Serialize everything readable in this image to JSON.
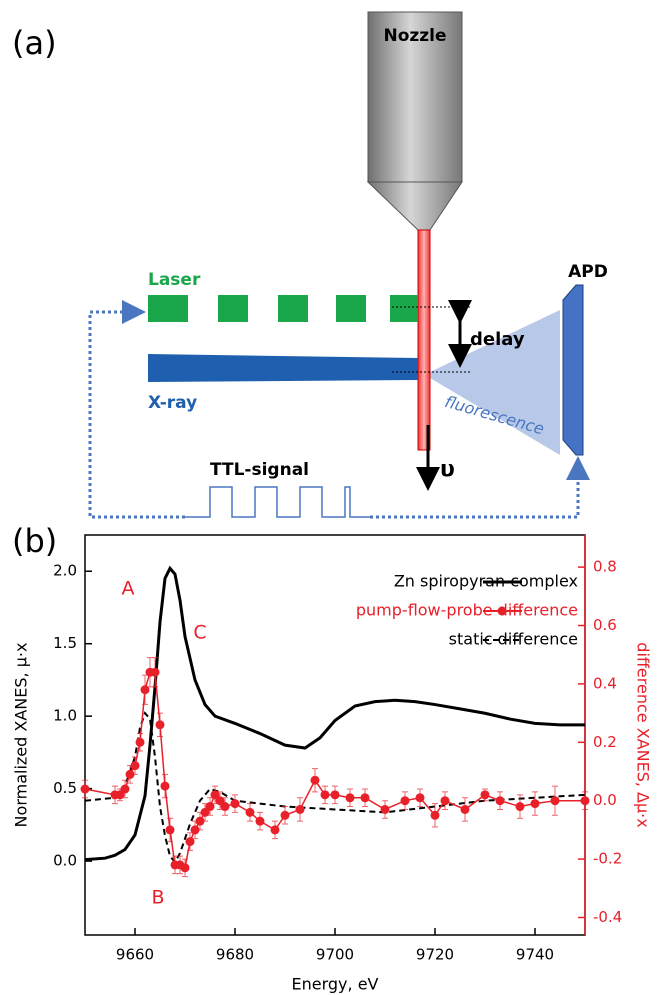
{
  "panel_a": {
    "label": "(a)",
    "nozzle": "Nozzle",
    "laser": "Laser",
    "xray": "X-ray",
    "delay": "delay",
    "apd": "APD",
    "fluorescence": "fluorescence",
    "ttl": "TTL-signal",
    "velocity": "υ"
  },
  "chart_data": {
    "type": "line",
    "panel_label": "(b)",
    "x_label": "Energy, eV",
    "y_label": "Normalized XANES, μ·x",
    "y2_label": "difference XANES, Δμ·x",
    "xlim": [
      9650,
      9750
    ],
    "xticks": [
      9660,
      9680,
      9700,
      9720,
      9740
    ],
    "ylim": [
      -0.51,
      2.25
    ],
    "yticks": [
      {
        "value": 0,
        "label": "0.0"
      },
      0.5,
      {
        "value": 1,
        "label": "1.0"
      },
      1.5,
      {
        "value": 2,
        "label": "2.0"
      }
    ],
    "y2lim": [
      -0.46,
      0.91
    ],
    "y2ticks": [
      -0.4,
      -0.2,
      {
        "value": 0,
        "label": "0.0"
      },
      0.2,
      0.4,
      0.6,
      0.8
    ],
    "annotations": [
      "A",
      "B",
      "C"
    ],
    "series": [
      {
        "name": "Zn spiropyran complex",
        "color": "#000000",
        "axis": "y",
        "dash": false,
        "markers": false,
        "x": [
          9650,
          9654,
          9656,
          9658,
          9660,
          9662,
          9663,
          9664,
          9665,
          9666,
          9667,
          9668,
          9669,
          9670,
          9672,
          9674,
          9676,
          9680,
          9685,
          9690,
          9694,
          9697,
          9700,
          9704,
          9708,
          9712,
          9716,
          9720,
          9725,
          9730,
          9735,
          9740,
          9745,
          9750
        ],
        "values": [
          0.01,
          0.02,
          0.04,
          0.08,
          0.18,
          0.45,
          0.8,
          1.2,
          1.65,
          1.95,
          2.02,
          1.98,
          1.8,
          1.55,
          1.25,
          1.08,
          1.0,
          0.95,
          0.88,
          0.8,
          0.78,
          0.85,
          0.97,
          1.07,
          1.1,
          1.11,
          1.1,
          1.08,
          1.05,
          1.02,
          0.98,
          0.95,
          0.94,
          0.94
        ]
      },
      {
        "name": "pump-flow-probe difference",
        "color": "#e8202a",
        "axis": "y2",
        "dash": false,
        "markers": true,
        "x": [
          9650,
          9656,
          9657,
          9658,
          9659,
          9660,
          9661,
          9662,
          9663,
          9664,
          9665,
          9666,
          9667,
          9668,
          9669,
          9670,
          9671,
          9672,
          9673,
          9674,
          9675,
          9676,
          9677,
          9678,
          9680,
          9683,
          9685,
          9688,
          9690,
          9693,
          9696,
          9698,
          9700,
          9703,
          9706,
          9710,
          9714,
          9717,
          9720,
          9722,
          9726,
          9730,
          9733,
          9737,
          9740,
          9744,
          9750
        ],
        "values": [
          0.04,
          0.02,
          0.02,
          0.04,
          0.09,
          0.12,
          0.2,
          0.38,
          0.44,
          0.44,
          0.26,
          0.05,
          -0.1,
          -0.22,
          -0.22,
          -0.23,
          -0.14,
          -0.1,
          -0.07,
          -0.04,
          -0.02,
          0.02,
          0,
          -0.02,
          -0.01,
          -0.04,
          -0.07,
          -0.1,
          -0.05,
          -0.03,
          0.07,
          0.02,
          0.02,
          0.01,
          0.01,
          -0.03,
          0,
          0.01,
          -0.05,
          0,
          -0.03,
          0.02,
          0,
          -0.02,
          -0.01,
          0,
          0
        ],
        "errors": [
          0.03,
          0.03,
          0.02,
          0.03,
          0.03,
          0.03,
          0.03,
          0.05,
          0.05,
          0.05,
          0.04,
          0.04,
          0.04,
          0.03,
          0.03,
          0.03,
          0.03,
          0.03,
          0.03,
          0.03,
          0.03,
          0.03,
          0.03,
          0.03,
          0.03,
          0.03,
          0.03,
          0.03,
          0.03,
          0.04,
          0.04,
          0.03,
          0.03,
          0.03,
          0.03,
          0.03,
          0.03,
          0.03,
          0.04,
          0.03,
          0.04,
          0.02,
          0.03,
          0.04,
          0.04,
          0.05,
          0.03
        ]
      },
      {
        "name": "static difference",
        "color": "#000000",
        "axis": "y2",
        "dash": true,
        "markers": false,
        "x": [
          9650,
          9656,
          9658,
          9660,
          9661,
          9662,
          9663,
          9664,
          9665,
          9666,
          9667,
          9668,
          9669,
          9671,
          9673,
          9675,
          9677,
          9680,
          9690,
          9700,
          9710,
          9720,
          9730,
          9740,
          9750
        ],
        "values": [
          0,
          0.01,
          0.05,
          0.15,
          0.25,
          0.3,
          0.28,
          0.15,
          -0.02,
          -0.12,
          -0.19,
          -0.21,
          -0.18,
          -0.08,
          0,
          0.04,
          0.03,
          0,
          -0.02,
          -0.03,
          -0.04,
          -0.02,
          0,
          0.01,
          0.02
        ]
      }
    ]
  }
}
